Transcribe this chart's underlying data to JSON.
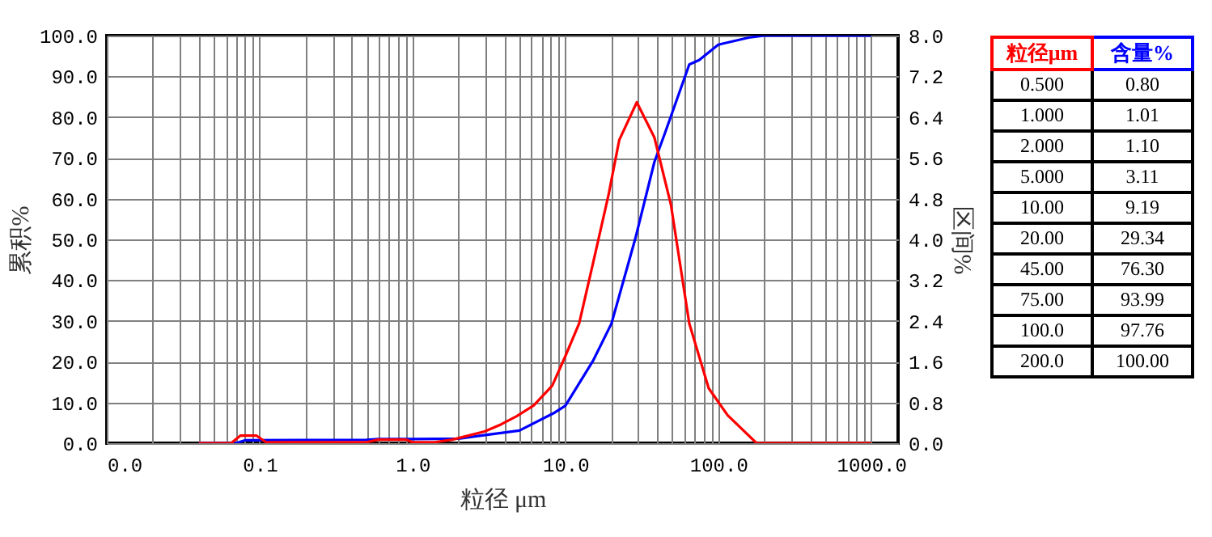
{
  "chart_data": [
    {
      "type": "line",
      "xlabel": "粒径 μm",
      "ylabel": "累积%",
      "y2label": "区间%",
      "log": "x",
      "grid": true,
      "marker": "none",
      "line_style": "solid",
      "xlim": [
        0.01,
        1500
      ],
      "xticks": [
        {
          "value": 0.01,
          "label": "0.0"
        },
        {
          "value": 0.02,
          "label": null
        },
        {
          "value": 0.03,
          "label": null
        },
        {
          "value": 0.04,
          "label": null
        },
        {
          "value": 0.05,
          "label": null
        },
        {
          "value": 0.06,
          "label": null
        },
        {
          "value": 0.07,
          "label": null
        },
        {
          "value": 0.08,
          "label": null
        },
        {
          "value": 0.09,
          "label": null
        },
        {
          "value": 0.1,
          "label": "0.1"
        },
        {
          "value": 0.2,
          "label": null
        },
        {
          "value": 0.3,
          "label": null
        },
        {
          "value": 0.4,
          "label": null
        },
        {
          "value": 0.5,
          "label": null
        },
        {
          "value": 0.6,
          "label": null
        },
        {
          "value": 0.7,
          "label": null
        },
        {
          "value": 0.8,
          "label": null
        },
        {
          "value": 0.9,
          "label": null
        },
        {
          "value": 1,
          "label": "1.0"
        },
        {
          "value": 2,
          "label": null
        },
        {
          "value": 3,
          "label": null
        },
        {
          "value": 4,
          "label": null
        },
        {
          "value": 5,
          "label": null
        },
        {
          "value": 6,
          "label": null
        },
        {
          "value": 7,
          "label": null
        },
        {
          "value": 8,
          "label": null
        },
        {
          "value": 9,
          "label": null
        },
        {
          "value": 10,
          "label": "10.0"
        },
        {
          "value": 20,
          "label": null
        },
        {
          "value": 30,
          "label": null
        },
        {
          "value": 40,
          "label": null
        },
        {
          "value": 50,
          "label": null
        },
        {
          "value": 60,
          "label": null
        },
        {
          "value": 70,
          "label": null
        },
        {
          "value": 80,
          "label": null
        },
        {
          "value": 90,
          "label": null
        },
        {
          "value": 100,
          "label": "100.0"
        },
        {
          "value": 200,
          "label": null
        },
        {
          "value": 300,
          "label": null
        },
        {
          "value": 400,
          "label": null
        },
        {
          "value": 500,
          "label": null
        },
        {
          "value": 600,
          "label": null
        },
        {
          "value": 700,
          "label": null
        },
        {
          "value": 800,
          "label": null
        },
        {
          "value": 900,
          "label": null
        },
        {
          "value": 1000,
          "label": "1000.0"
        }
      ],
      "ylim": [
        0,
        100
      ],
      "yticks": [
        {
          "value": 0,
          "label": "0.0"
        },
        {
          "value": 10,
          "label": "10.0"
        },
        {
          "value": 20,
          "label": "20.0"
        },
        {
          "value": 30,
          "label": "30.0"
        },
        {
          "value": 40,
          "label": "40.0"
        },
        {
          "value": 50,
          "label": "50.0"
        },
        {
          "value": 60,
          "label": "60.0"
        },
        {
          "value": 70,
          "label": "70.0"
        },
        {
          "value": 80,
          "label": "80.0"
        },
        {
          "value": 90,
          "label": "90.0"
        },
        {
          "value": 100,
          "label": "100.0"
        }
      ],
      "y2lim": [
        0,
        8
      ],
      "y2ticks": [
        {
          "value": 0,
          "label": "0.0"
        },
        {
          "value": 0.8,
          "label": "0.8"
        },
        {
          "value": 1.6,
          "label": "1.6"
        },
        {
          "value": 2.4,
          "label": "2.4"
        },
        {
          "value": 3.2,
          "label": "3.2"
        },
        {
          "value": 4,
          "label": "4.0"
        },
        {
          "value": 4.8,
          "label": "4.8"
        },
        {
          "value": 5.6,
          "label": "5.6"
        },
        {
          "value": 6.4,
          "label": "6.4"
        },
        {
          "value": 7.2,
          "label": "7.2"
        },
        {
          "value": 8,
          "label": "8.0"
        }
      ],
      "series": [
        {
          "color": "#0000ff",
          "x": [
            0.04,
            0.07,
            0.08,
            0.5,
            0.6,
            1,
            2,
            3,
            5,
            8.5,
            10,
            15.1,
            20,
            28.8,
            38.2,
            45,
            64.6,
            75,
            100,
            158,
            200,
            1000
          ],
          "values": [
            0,
            0,
            0.7,
            0.8,
            1.0,
            1.01,
            1.1,
            2.0,
            3.11,
            7.5,
            9.19,
            20.1,
            29.34,
            50.5,
            69,
            76.3,
            92.9,
            93.99,
            97.76,
            99.5,
            100,
            100
          ]
        },
        {
          "color": "#ff0000",
          "axis": "y2",
          "x": [
            0.04,
            0.065,
            0.075,
            0.095,
            0.11,
            0.5,
            0.6,
            0.9,
            1.0,
            1.4,
            1.82,
            2.96,
            3.8,
            4.8,
            6.2,
            8.2,
            10,
            12.3,
            15.1,
            19.2,
            22.5,
            29.3,
            38.2,
            49,
            64.6,
            86.5,
            115,
            178,
            1000
          ],
          "values": [
            0,
            0,
            0.15,
            0.15,
            0.02,
            0.02,
            0.07,
            0.07,
            0.02,
            0.02,
            0.07,
            0.23,
            0.37,
            0.53,
            0.74,
            1.13,
            1.71,
            2.35,
            3.51,
            4.89,
            5.95,
            6.69,
            6.0,
            4.68,
            2.35,
            1.08,
            0.55,
            0,
            0
          ]
        }
      ]
    },
    {
      "type": "other",
      "categories": [
        "粒径μm",
        "含量%"
      ],
      "colors": [
        "#ff0000",
        "#0000ff"
      ],
      "cell_labels": [
        [
          "0.500",
          "0.80"
        ],
        [
          "1.000",
          "1.01"
        ],
        [
          "2.000",
          "1.10"
        ],
        [
          "5.000",
          "3.11"
        ],
        [
          "10.00",
          "9.19"
        ],
        [
          "20.00",
          "29.34"
        ],
        [
          "45.00",
          "76.30"
        ],
        [
          "75.00",
          "93.99"
        ],
        [
          "100.0",
          "97.76"
        ],
        [
          "200.0",
          "100.00"
        ]
      ]
    }
  ]
}
